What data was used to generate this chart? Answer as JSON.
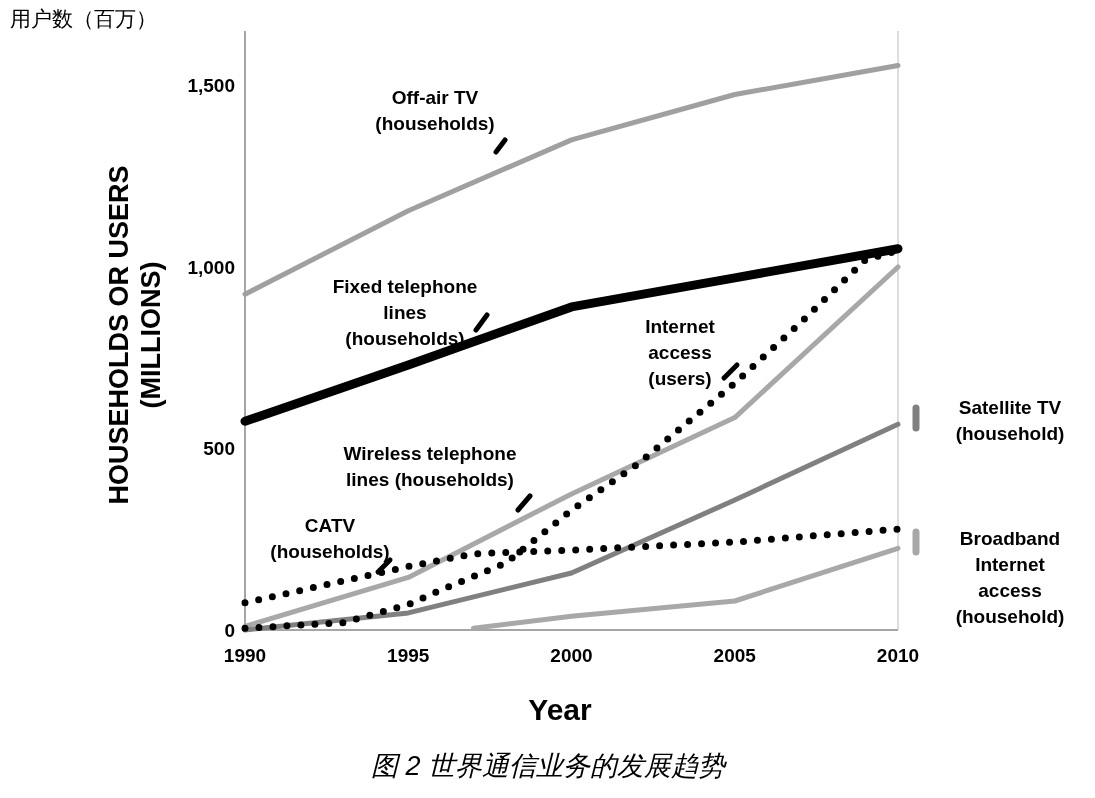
{
  "chart_data": {
    "type": "line",
    "annotations": [
      "用户数（百万）",
      "图 2 世界通信业务的发展趋势"
    ],
    "xlabel": "Year",
    "legend": "right",
    "ylabel": "HOUSEHOLDS OR USERS (MILLIONS)",
    "x": [
      1990,
      1995,
      2000,
      2005,
      2010
    ],
    "xlim": [
      1990,
      2010
    ],
    "xticks": [
      1990,
      1995,
      2000,
      2005,
      2010
    ],
    "ylim": [
      0,
      1650
    ],
    "yticks": [
      0,
      500,
      {
        "value": 1000,
        "label": "1,000"
      },
      {
        "value": 1500,
        "label": "1,500"
      }
    ],
    "series": [
      {
        "name": "Off-air TV (households)",
        "color": "#a0a0a0",
        "line_style": "solid",
        "values": [
          925,
          1155,
          1350,
          1475,
          1555
        ]
      },
      {
        "name": "Fixed telephone lines (households)",
        "color": "#000000",
        "line_style": "solid",
        "values": [
          575,
          730,
          890,
          970,
          1050
        ]
      },
      {
        "name": "Internet access (users)",
        "color": "#000000",
        "line_style": "dotted",
        "x": [
          1990,
          1993,
          1995,
          1996,
          1998,
          2000,
          2002,
          2005,
          2007,
          2009,
          2010
        ],
        "values": [
          5,
          20,
          70,
          110,
          185,
          330,
          455,
          680,
          845,
          1020,
          1045
        ]
      },
      {
        "name": "Wireless telephone lines (households)",
        "color": "#a8a8a8",
        "line_style": "solid",
        "values": [
          10,
          145,
          375,
          585,
          1000
        ]
      },
      {
        "name": "CATV (households)",
        "color": "#000000",
        "line_style": "dotted",
        "x": [
          1990,
          1995,
          1997,
          2000,
          2005,
          2010
        ],
        "values": [
          75,
          175,
          210,
          220,
          242,
          278
        ]
      },
      {
        "name": "Satellite TV (household)",
        "color": "#808080",
        "line_style": "solid",
        "values": [
          0,
          47,
          157,
          358,
          567
        ]
      },
      {
        "name": "Broadband Internet access (household)",
        "color": "#a8a8a8",
        "line_style": "solid",
        "x": [
          1997,
          2000,
          2005,
          2010
        ],
        "values": [
          5,
          38,
          80,
          225
        ]
      }
    ]
  }
}
